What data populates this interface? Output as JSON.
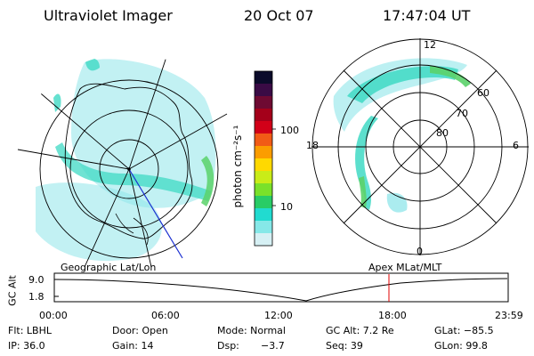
{
  "header": {
    "title": "Ultraviolet Imager",
    "date": "20 Oct 07",
    "time": "17:47:04 UT"
  },
  "colorbar": {
    "label": "photon cm⁻²s⁻¹",
    "ticks": [
      "100",
      "10"
    ],
    "colors": [
      "#0b0b2a",
      "#3a0b45",
      "#6e0a32",
      "#a4001a",
      "#d20018",
      "#f15b16",
      "#fb9d00",
      "#ffd900",
      "#c9ec18",
      "#7ae12a",
      "#29cc66",
      "#21dbd0",
      "#86e8e8",
      "#d6f0f4"
    ]
  },
  "left_map": {
    "label": "Geographic Lat/Lon"
  },
  "right_map": {
    "label": "Apex MLat/MLT",
    "mlt_labels": {
      "top": "12",
      "left": "18",
      "right": "6",
      "bottom": "0"
    },
    "lat_labels": [
      "60",
      "70",
      "80"
    ]
  },
  "altitude_plot": {
    "axis_label": "GC Alt",
    "y_ticks": [
      "9.0",
      "1.8"
    ],
    "x_ticks": [
      "00:00",
      "06:00",
      "12:00",
      "18:00",
      "23:59"
    ],
    "current_time_marker": "17:47"
  },
  "status": {
    "filter": "Flt: LBHL",
    "door": "Door: Open",
    "mode": "Mode: Normal",
    "gc_alt": "GC Alt: 7.2 Re",
    "glat": "GLat: −85.5",
    "ip": "IP: 36.0",
    "gain": "Gain: 14",
    "dsp_label": "Dsp:",
    "dsp_value": "−3.7",
    "seq": "Seq: 39",
    "glon": "GLon:  99.8"
  }
}
